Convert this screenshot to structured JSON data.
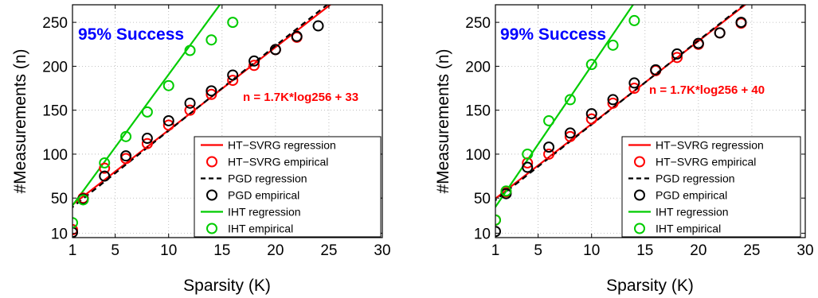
{
  "chart_data": [
    {
      "type": "line",
      "title": "95% Success",
      "title_color": "#0000ff",
      "annotation": "n = 1.7K*log256 + 33",
      "annotation_color": "#ff0000",
      "xlabel": "Sparsity (K)",
      "ylabel": "#Measurements (n)",
      "xlim": [
        1,
        30
      ],
      "ylim": [
        5,
        270
      ],
      "xticks": [
        1,
        5,
        10,
        15,
        20,
        25,
        30
      ],
      "yticks": [
        10,
        50,
        100,
        150,
        200,
        250
      ],
      "grid": true,
      "legend_position": "bottom-right",
      "series": [
        {
          "name": "HT−SVRG  regression",
          "kind": "line",
          "color": "#ff0000",
          "dash": "solid",
          "x": [
            0,
            30
          ],
          "y": [
            33,
            316
          ]
        },
        {
          "name": "HT−SVRG  empirical",
          "kind": "scatter",
          "color": "#ff0000",
          "x": [
            1,
            2,
            4,
            6,
            8,
            10,
            12,
            14,
            16,
            18,
            20,
            22
          ],
          "y": [
            14,
            50,
            84,
            95,
            112,
            133,
            150,
            168,
            184,
            201,
            219,
            233
          ]
        },
        {
          "name": "PGD  regression",
          "kind": "line",
          "color": "#000000",
          "dash": "dashed",
          "x": [
            0,
            30
          ],
          "y": [
            30,
            320
          ]
        },
        {
          "name": "PGD  empirical",
          "kind": "scatter",
          "color": "#000000",
          "x": [
            1,
            2,
            4,
            6,
            8,
            10,
            12,
            14,
            16,
            18,
            20,
            22,
            24
          ],
          "y": [
            11,
            49,
            75,
            98,
            118,
            138,
            158,
            172,
            190,
            206,
            219,
            234,
            246
          ]
        },
        {
          "name": "IHT  regression",
          "kind": "line",
          "color": "#00cc00",
          "dash": "solid",
          "x": [
            0,
            16
          ],
          "y": [
            25,
            290
          ]
        },
        {
          "name": "IHT  empirical",
          "kind": "scatter",
          "color": "#00cc00",
          "x": [
            1,
            2,
            4,
            6,
            8,
            10,
            12,
            14,
            16
          ],
          "y": [
            22,
            48,
            90,
            120,
            148,
            178,
            218,
            230,
            250
          ]
        }
      ]
    },
    {
      "type": "line",
      "title": "99% Success",
      "title_color": "#0000ff",
      "annotation": "n = 1.7K*log256 + 40",
      "annotation_color": "#ff0000",
      "xlabel": "Sparsity (K)",
      "ylabel": "#Measurements (n)",
      "xlim": [
        1,
        30
      ],
      "ylim": [
        5,
        270
      ],
      "xticks": [
        1,
        5,
        10,
        15,
        20,
        25,
        30
      ],
      "yticks": [
        10,
        50,
        100,
        150,
        200,
        250
      ],
      "grid": true,
      "legend_position": "bottom-right",
      "series": [
        {
          "name": "HT−SVRG  regression",
          "kind": "line",
          "color": "#ff0000",
          "dash": "solid",
          "x": [
            0,
            30
          ],
          "y": [
            40,
            323
          ]
        },
        {
          "name": "HT−SVRG  empirical",
          "kind": "scatter",
          "color": "#ff0000",
          "x": [
            1,
            2,
            4,
            6,
            8,
            10,
            12,
            14,
            16,
            18,
            20,
            22,
            24
          ],
          "y": [
            25,
            57,
            90,
            100,
            120,
            140,
            158,
            175,
            195,
            210,
            225,
            238,
            249
          ]
        },
        {
          "name": "PGD  regression",
          "kind": "line",
          "color": "#000000",
          "dash": "dashed",
          "x": [
            0,
            30
          ],
          "y": [
            38,
            325
          ]
        },
        {
          "name": "PGD  empirical",
          "kind": "scatter",
          "color": "#000000",
          "x": [
            1,
            2,
            4,
            6,
            8,
            10,
            12,
            14,
            16,
            18,
            20,
            22,
            24
          ],
          "y": [
            12,
            55,
            85,
            108,
            124,
            146,
            162,
            181,
            196,
            214,
            226,
            238,
            250
          ]
        },
        {
          "name": "IHT  regression",
          "kind": "line",
          "color": "#00cc00",
          "dash": "solid",
          "x": [
            0,
            15
          ],
          "y": [
            22,
            290
          ]
        },
        {
          "name": "IHT  empirical",
          "kind": "scatter",
          "color": "#00cc00",
          "x": [
            1,
            2,
            4,
            6,
            8,
            10,
            12,
            14
          ],
          "y": [
            25,
            58,
            100,
            138,
            162,
            202,
            224,
            252
          ]
        }
      ]
    }
  ]
}
